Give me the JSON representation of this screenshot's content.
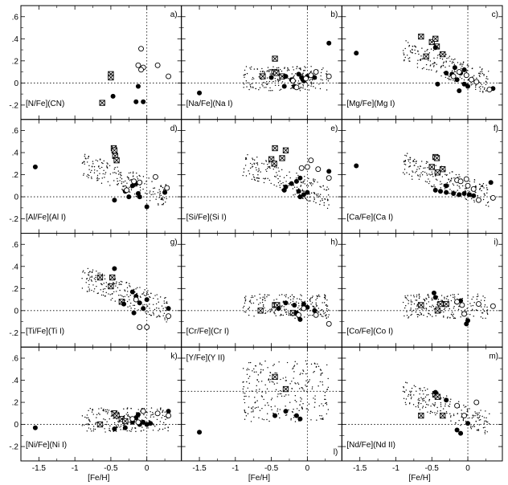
{
  "chart_data": {
    "type": "scatter",
    "grid": {
      "rows": 4,
      "cols": 3
    },
    "xlabel": "[Fe/H]",
    "xticks": [
      {
        "v": -1.5,
        "label": "-1.5"
      },
      {
        "v": -1.0,
        "label": "-1"
      },
      {
        "v": -0.5,
        "label": "-0.5"
      },
      {
        "v": 0.0,
        "label": "0"
      }
    ],
    "yticks": [
      {
        "v": -0.2,
        "label": "-.2"
      },
      {
        "v": 0.0,
        "label": "0"
      },
      {
        "v": 0.2,
        "label": ".2"
      },
      {
        "v": 0.4,
        "label": ".4"
      },
      {
        "v": 0.6,
        "label": ".6"
      }
    ],
    "xlim": [
      -1.75,
      0.48
    ],
    "ylim": [
      -0.33,
      0.7
    ],
    "panels": [
      {
        "letter": "a)",
        "name": "[N/Fe](CN)",
        "ref_y": 0,
        "crossed": [
          [
            -0.62,
            -0.18
          ],
          [
            -0.5,
            0.08
          ],
          [
            -0.5,
            0.05
          ]
        ],
        "filled": [
          [
            -0.47,
            -0.12
          ],
          [
            -0.15,
            -0.17
          ],
          [
            -0.05,
            -0.17
          ],
          [
            -0.12,
            -0.03
          ]
        ],
        "open": [
          [
            -0.08,
            0.31
          ],
          [
            -0.12,
            0.16
          ],
          [
            -0.05,
            0.14
          ],
          [
            -0.08,
            0.12
          ],
          [
            0.15,
            0.16
          ],
          [
            0.3,
            0.06
          ]
        ]
      },
      {
        "letter": "b)",
        "name": "[Na/Fe](Na I)",
        "ref_y": 0,
        "crossed": [
          [
            -0.45,
            0.22
          ],
          [
            -0.62,
            0.06
          ],
          [
            -0.46,
            0.1
          ],
          [
            -0.43,
            0.09
          ],
          [
            -0.35,
            0.06
          ]
        ],
        "filled": [
          [
            -1.5,
            -0.09
          ],
          [
            -0.5,
            0.05
          ],
          [
            -0.3,
            0.06
          ],
          [
            -0.22,
            0.03
          ],
          [
            -0.18,
            -0.03
          ],
          [
            -0.12,
            0.08
          ],
          [
            -0.08,
            0.05
          ],
          [
            -0.05,
            0.02
          ],
          [
            0.0,
            0.06
          ],
          [
            0.1,
            0.05
          ],
          [
            0.3,
            0.36
          ],
          [
            -0.32,
            -0.03
          ]
        ],
        "open": [
          [
            -0.2,
            0.02
          ],
          [
            -0.15,
            -0.04
          ],
          [
            -0.02,
            0.04
          ],
          [
            0.05,
            0.07
          ],
          [
            0.12,
            0.1
          ],
          [
            0.3,
            0.06
          ]
        ]
      },
      {
        "letter": "c)",
        "name": "[Mg/Fe](Mg I)",
        "ref_y": 0,
        "crossed": [
          [
            -0.65,
            0.42
          ],
          [
            -0.5,
            0.37
          ],
          [
            -0.45,
            0.4
          ],
          [
            -0.43,
            0.33
          ],
          [
            -0.58,
            0.24
          ],
          [
            -0.35,
            0.26
          ]
        ],
        "filled": [
          [
            -1.55,
            0.27
          ],
          [
            -0.45,
            0.32
          ],
          [
            -0.3,
            0.09
          ],
          [
            -0.22,
            0.08
          ],
          [
            -0.18,
            0.14
          ],
          [
            -0.1,
            0.09
          ],
          [
            -0.05,
            0.12
          ],
          [
            -0.15,
            0.03
          ],
          [
            -0.05,
            -0.01
          ],
          [
            0.0,
            -0.03
          ],
          [
            -0.42,
            -0.01
          ],
          [
            -0.12,
            -0.07
          ],
          [
            0.35,
            -0.05
          ]
        ],
        "open": [
          [
            -0.2,
            0.06
          ],
          [
            -0.12,
            0.1
          ],
          [
            -0.02,
            0.07
          ],
          [
            0.05,
            0.03
          ],
          [
            0.12,
            0.01
          ],
          [
            0.3,
            -0.06
          ]
        ]
      },
      {
        "letter": "d)",
        "name": "[Al/Fe](Al I)",
        "ref_y": 0,
        "crossed": [
          [
            -0.46,
            0.44
          ],
          [
            -0.45,
            0.42
          ],
          [
            -0.44,
            0.37
          ],
          [
            -0.42,
            0.33
          ]
        ],
        "filled": [
          [
            -1.55,
            0.27
          ],
          [
            -0.45,
            -0.03
          ],
          [
            -0.3,
            0.05
          ],
          [
            -0.2,
            0.1
          ],
          [
            -0.15,
            0.12
          ],
          [
            -0.12,
            0.03
          ],
          [
            -0.1,
            0.0
          ],
          [
            0.0,
            -0.09
          ],
          [
            0.25,
            0.04
          ],
          [
            -0.25,
            0.0
          ]
        ],
        "open": [
          [
            -0.28,
            0.06
          ],
          [
            -0.18,
            0.14
          ],
          [
            -0.1,
            0.13
          ],
          [
            0.12,
            0.18
          ],
          [
            0.28,
            0.08
          ]
        ]
      },
      {
        "letter": "e)",
        "name": "[Si/Fe](Si I)",
        "ref_y": 0,
        "crossed": [
          [
            -0.45,
            0.44
          ],
          [
            -0.3,
            0.42
          ],
          [
            -0.5,
            0.34
          ],
          [
            -0.46,
            0.3
          ],
          [
            -0.35,
            0.35
          ]
        ],
        "filled": [
          [
            -0.3,
            0.09
          ],
          [
            -0.22,
            0.12
          ],
          [
            -0.15,
            0.14
          ],
          [
            -0.1,
            0.17
          ],
          [
            -0.12,
            0.05
          ],
          [
            -0.05,
            0.02
          ],
          [
            0.0,
            0.04
          ],
          [
            -0.32,
            0.06
          ],
          [
            -0.1,
            0.0
          ],
          [
            0.3,
            0.23
          ]
        ],
        "open": [
          [
            -0.08,
            0.26
          ],
          [
            0.0,
            0.27
          ],
          [
            0.05,
            0.33
          ],
          [
            0.15,
            0.25
          ],
          [
            0.3,
            0.17
          ]
        ]
      },
      {
        "letter": "f)",
        "name": "[Ca/Fe](Ca I)",
        "ref_y": 0,
        "crossed": [
          [
            -0.45,
            0.36
          ],
          [
            -0.43,
            0.35
          ],
          [
            -0.5,
            0.27
          ],
          [
            -0.35,
            0.25
          ],
          [
            -0.42,
            0.22
          ]
        ],
        "filled": [
          [
            -1.55,
            0.28
          ],
          [
            -0.45,
            0.06
          ],
          [
            -0.38,
            0.05
          ],
          [
            -0.3,
            0.04
          ],
          [
            -0.2,
            0.03
          ],
          [
            -0.12,
            0.02
          ],
          [
            -0.05,
            0.03
          ],
          [
            0.02,
            0.02
          ],
          [
            0.08,
            0.01
          ],
          [
            -0.3,
            0.1
          ],
          [
            0.32,
            0.13
          ]
        ],
        "open": [
          [
            -0.15,
            0.15
          ],
          [
            -0.1,
            0.14
          ],
          [
            -0.02,
            0.16
          ],
          [
            0.0,
            0.1
          ],
          [
            0.08,
            0.07
          ],
          [
            0.15,
            -0.03
          ],
          [
            0.35,
            -0.01
          ]
        ]
      },
      {
        "letter": "g)",
        "name": "[Ti/Fe](Ti I)",
        "ref_y": 0,
        "crossed": [
          [
            -0.65,
            0.3
          ],
          [
            -0.48,
            0.3
          ],
          [
            -0.5,
            0.22
          ],
          [
            -0.35,
            0.08
          ]
        ],
        "filled": [
          [
            -0.45,
            0.38
          ],
          [
            -0.32,
            0.06
          ],
          [
            -0.2,
            0.17
          ],
          [
            -0.15,
            0.13
          ],
          [
            -0.1,
            0.07
          ],
          [
            -0.05,
            0.02
          ],
          [
            0.0,
            0.1
          ],
          [
            -0.18,
            -0.02
          ],
          [
            0.3,
            0.02
          ]
        ],
        "open": [
          [
            -0.15,
            0.1
          ],
          [
            -0.1,
            -0.15
          ],
          [
            0.0,
            -0.15
          ],
          [
            0.3,
            -0.05
          ]
        ]
      },
      {
        "letter": "h)",
        "name": "[Cr/Fe](Cr I)",
        "ref_y": 0,
        "crossed": [
          [
            -0.65,
            0.0
          ],
          [
            -0.45,
            0.05
          ],
          [
            -0.42,
            0.05
          ],
          [
            -0.2,
            -0.02
          ]
        ],
        "filled": [
          [
            -0.4,
            0.02
          ],
          [
            -0.3,
            0.07
          ],
          [
            -0.15,
            -0.02
          ],
          [
            -0.1,
            -0.08
          ],
          [
            -0.05,
            0.06
          ],
          [
            0.0,
            0.03
          ],
          [
            0.1,
            0.0
          ],
          [
            -0.18,
            0.05
          ]
        ],
        "open": [
          [
            -0.12,
            -0.04
          ],
          [
            -0.05,
            0.02
          ],
          [
            0.12,
            -0.04
          ],
          [
            0.3,
            -0.12
          ]
        ]
      },
      {
        "letter": "i)",
        "name": "[Co/Fe](Co I)",
        "ref_y": 0,
        "crossed": [
          [
            -0.65,
            0.05
          ],
          [
            -0.38,
            0.06
          ],
          [
            -0.3,
            0.06
          ],
          [
            -0.42,
            0.0
          ]
        ],
        "filled": [
          [
            -0.47,
            0.16
          ],
          [
            -0.45,
            0.12
          ],
          [
            -0.1,
            0.09
          ],
          [
            -0.02,
            -0.12
          ],
          [
            0.0,
            -0.09
          ]
        ],
        "open": [
          [
            -0.15,
            0.08
          ],
          [
            -0.08,
            0.05
          ],
          [
            -0.05,
            -0.03
          ],
          [
            0.15,
            0.06
          ],
          [
            0.35,
            0.04
          ]
        ]
      },
      {
        "letter": "k)",
        "name": "[Ni/Fe](Ni I)",
        "ref_y": 0,
        "crossed": [
          [
            -0.65,
            0.0
          ],
          [
            -0.45,
            0.1
          ],
          [
            -0.42,
            0.08
          ],
          [
            -0.35,
            0.05
          ],
          [
            -0.3,
            0.03
          ]
        ],
        "filled": [
          [
            -1.55,
            -0.03
          ],
          [
            -0.45,
            -0.04
          ],
          [
            -0.3,
            -0.03
          ],
          [
            -0.2,
            0.02
          ],
          [
            -0.15,
            0.06
          ],
          [
            -0.1,
            0.0
          ],
          [
            -0.05,
            0.02
          ],
          [
            0.0,
            0.0
          ],
          [
            0.05,
            0.01
          ],
          [
            0.3,
            0.12
          ],
          [
            -0.12,
            0.09
          ]
        ],
        "open": [
          [
            -0.2,
            0.05
          ],
          [
            -0.12,
            0.02
          ],
          [
            -0.05,
            0.12
          ],
          [
            0.15,
            0.1
          ],
          [
            0.3,
            0.08
          ]
        ]
      },
      {
        "letter": "l)",
        "name": "[Y/Fe](Y II)",
        "ref_y": 0.3,
        "letter_pos": "bottom",
        "crossed": [
          [
            -0.45,
            0.43
          ],
          [
            -0.3,
            0.32
          ]
        ],
        "filled": [
          [
            -1.5,
            -0.07
          ],
          [
            -0.45,
            0.08
          ],
          [
            -0.15,
            0.08
          ],
          [
            -0.1,
            0.05
          ],
          [
            -0.3,
            0.12
          ]
        ],
        "open": []
      },
      {
        "letter": "m)",
        "name": "[Nd/Fe](Nd II)",
        "ref_y": 0,
        "crossed": [
          [
            -0.65,
            0.08
          ],
          [
            -0.45,
            0.27
          ],
          [
            -0.42,
            0.25
          ],
          [
            -0.35,
            0.08
          ]
        ],
        "filled": [
          [
            -0.3,
            0.22
          ],
          [
            -0.15,
            -0.05
          ],
          [
            -0.1,
            -0.08
          ],
          [
            0.0,
            0.01
          ],
          [
            -0.45,
            0.29
          ]
        ],
        "open": [
          [
            -0.15,
            0.17
          ],
          [
            -0.05,
            0.08
          ],
          [
            0.12,
            0.2
          ]
        ]
      }
    ]
  }
}
